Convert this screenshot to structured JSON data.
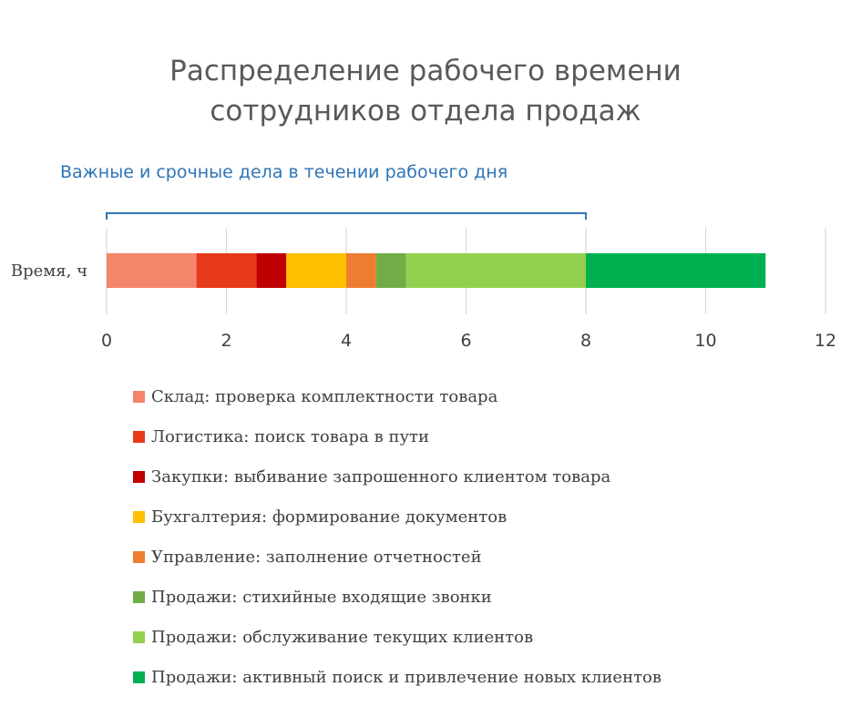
{
  "chart_data": {
    "type": "bar",
    "orientation": "horizontal",
    "stacked": true,
    "title": "Распределение рабочего времени сотрудников отдела продаж",
    "title_lines": [
      "Распределение рабочего времени",
      "сотрудников отдела продаж"
    ],
    "annotation": "Важные и срочные дела в течении рабочего дня",
    "annotation_range": [
      0,
      8
    ],
    "categories": [
      "Время, ч"
    ],
    "xlim": [
      0,
      12
    ],
    "x_ticks": [
      0,
      2,
      4,
      6,
      8,
      10,
      12
    ],
    "grid": true,
    "legend_position": "bottom",
    "series": [
      {
        "name": "Склад: проверка комплектности товара",
        "values": [
          1.5
        ],
        "color": "#f4846a"
      },
      {
        "name": "Логистика: поиск товара в пути",
        "values": [
          1.0
        ],
        "color": "#e63a1a"
      },
      {
        "name": "Закупки: выбивание запрошенного клиентом товара",
        "values": [
          0.5
        ],
        "color": "#c00000"
      },
      {
        "name": "Бухгалтерия: формирование документов",
        "values": [
          1.0
        ],
        "color": "#ffc000"
      },
      {
        "name": "Управление: заполнение отчетностей",
        "values": [
          0.5
        ],
        "color": "#ed7d31"
      },
      {
        "name": "Продажи: стихийные входящие звонки",
        "values": [
          0.5
        ],
        "color": "#70ad47"
      },
      {
        "name": "Продажи: обслуживание текущих клиентов",
        "values": [
          3.0
        ],
        "color": "#92d050"
      },
      {
        "name": "Продажи: активный поиск и привлечение новых клиентов",
        "values": [
          3.0
        ],
        "color": "#00b050"
      }
    ]
  }
}
